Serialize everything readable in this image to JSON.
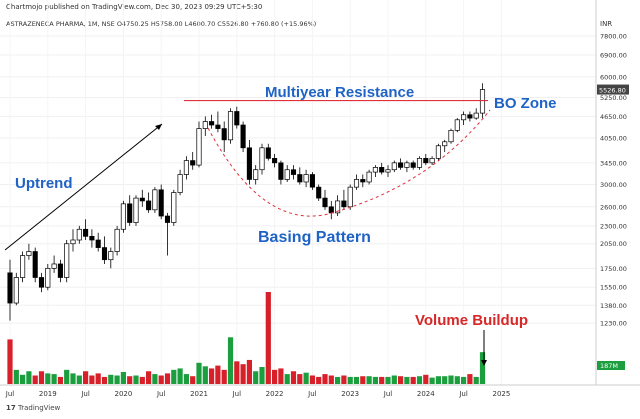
{
  "header": {
    "published_line": "Chartmojo published on TradingView.com, Dec 30, 2023 09:29 UTC+5:30",
    "symbol_line": "ASTRAZENECA PHARMA, 1M, NSE  O4750.25  H5758.00  L4600.70  C5526.80  +760.80 (+15.96%)",
    "currency": "INR"
  },
  "footer": {
    "brand": "TradingView"
  },
  "colors": {
    "up": "#1b9e3e",
    "down": "#d7202a",
    "resistance": "#e0303c",
    "annotation": "#1f63c6",
    "volume_label": "#d62828",
    "price_tag": "#444444"
  },
  "chart_data": {
    "type": "candlestick",
    "title": "ASTRAZENECA PHARMA, 1M, NSE",
    "timeframe": "1M",
    "scale": "log",
    "ylim": [
      1200,
      7800
    ],
    "x_ticks": [
      {
        "label": "Jul",
        "x": 2018.5
      },
      {
        "label": "2019",
        "x": 2019.0
      },
      {
        "label": "Jul",
        "x": 2019.5
      },
      {
        "label": "2020",
        "x": 2020.0
      },
      {
        "label": "Jul",
        "x": 2020.5
      },
      {
        "label": "2021",
        "x": 2021.0
      },
      {
        "label": "Jul",
        "x": 2021.5
      },
      {
        "label": "2022",
        "x": 2022.0
      },
      {
        "label": "Jul",
        "x": 2022.5
      },
      {
        "label": "2023",
        "x": 2023.0
      },
      {
        "label": "Jul",
        "x": 2023.5
      },
      {
        "label": "2024",
        "x": 2024.0
      },
      {
        "label": "Jul",
        "x": 2024.5
      },
      {
        "label": "2025",
        "x": 2025.0
      }
    ],
    "y_ticks": [
      "7800.00",
      "6900.00",
      "6000.00",
      "5250.00",
      "4650.00",
      "4050.00",
      "3450.00",
      "3000.00",
      "2600.00",
      "2300.00",
      "2050.00",
      "1750.00",
      "1550.00",
      "1380.00",
      "1230.00"
    ],
    "last_price_label": "5526.80",
    "volume_last_label": "187M",
    "candles": [
      [
        1700,
        1850,
        1250,
        1400
      ],
      [
        1400,
        1700,
        1380,
        1650
      ],
      [
        1650,
        1950,
        1600,
        1900
      ],
      [
        1900,
        2050,
        1850,
        1950
      ],
      [
        1950,
        2000,
        1600,
        1650
      ],
      [
        1650,
        1700,
        1500,
        1550
      ],
      [
        1550,
        1800,
        1520,
        1750
      ],
      [
        1750,
        1900,
        1700,
        1800
      ],
      [
        1800,
        1850,
        1600,
        1650
      ],
      [
        1650,
        2100,
        1600,
        2050
      ],
      [
        2050,
        2250,
        1950,
        2100
      ],
      [
        2100,
        2300,
        2050,
        2250
      ],
      [
        2250,
        2400,
        2100,
        2150
      ],
      [
        2150,
        2250,
        2000,
        2100
      ],
      [
        2100,
        2200,
        1950,
        2000
      ],
      [
        2000,
        2150,
        1800,
        1850
      ],
      [
        1850,
        2000,
        1750,
        1950
      ],
      [
        1950,
        2300,
        1900,
        2250
      ],
      [
        2250,
        2700,
        2200,
        2650
      ],
      [
        2650,
        2800,
        2300,
        2350
      ],
      [
        2350,
        2800,
        2300,
        2750
      ],
      [
        2750,
        2900,
        2600,
        2700
      ],
      [
        2700,
        2850,
        2500,
        2550
      ],
      [
        2550,
        2950,
        2500,
        2900
      ],
      [
        2900,
        3000,
        2400,
        2450
      ],
      [
        2450,
        2500,
        1900,
        2350
      ],
      [
        2350,
        2900,
        2300,
        2850
      ],
      [
        2850,
        3300,
        2800,
        3200
      ],
      [
        3200,
        3600,
        3100,
        3500
      ],
      [
        3500,
        3700,
        3300,
        3400
      ],
      [
        3400,
        4500,
        3350,
        4300
      ],
      [
        4300,
        4650,
        4100,
        4500
      ],
      [
        4500,
        4700,
        4300,
        4400
      ],
      [
        4400,
        4800,
        4200,
        4300
      ],
      [
        4300,
        4500,
        3700,
        4000
      ],
      [
        4000,
        4900,
        3900,
        4800
      ],
      [
        4800,
        4950,
        4300,
        4400
      ],
      [
        4400,
        4500,
        3700,
        3800
      ],
      [
        3800,
        4000,
        3000,
        3100
      ],
      [
        3100,
        3400,
        3000,
        3300
      ],
      [
        3300,
        3900,
        3200,
        3800
      ],
      [
        3800,
        3900,
        3500,
        3550
      ],
      [
        3550,
        3650,
        3350,
        3450
      ],
      [
        3450,
        3500,
        3000,
        3100
      ],
      [
        3100,
        3400,
        3050,
        3300
      ],
      [
        3300,
        3400,
        3100,
        3200
      ],
      [
        3200,
        3350,
        3000,
        3050
      ],
      [
        3050,
        3300,
        2950,
        3200
      ],
      [
        3200,
        3250,
        2900,
        2950
      ],
      [
        2950,
        3000,
        2700,
        2750
      ],
      [
        2750,
        2900,
        2550,
        2600
      ],
      [
        2600,
        2700,
        2400,
        2500
      ],
      [
        2500,
        2800,
        2450,
        2700
      ],
      [
        2700,
        2900,
        2550,
        2600
      ],
      [
        2600,
        3000,
        2550,
        2950
      ],
      [
        2950,
        3200,
        2900,
        3100
      ],
      [
        3100,
        3200,
        2950,
        3050
      ],
      [
        3050,
        3300,
        3000,
        3250
      ],
      [
        3250,
        3400,
        3150,
        3350
      ],
      [
        3350,
        3450,
        3200,
        3250
      ],
      [
        3250,
        3400,
        3150,
        3300
      ],
      [
        3300,
        3500,
        3250,
        3450
      ],
      [
        3450,
        3550,
        3300,
        3350
      ],
      [
        3350,
        3500,
        3250,
        3450
      ],
      [
        3450,
        3500,
        3300,
        3350
      ],
      [
        3350,
        3600,
        3300,
        3550
      ],
      [
        3550,
        3650,
        3400,
        3450
      ],
      [
        3450,
        3600,
        3400,
        3550
      ],
      [
        3550,
        3900,
        3500,
        3850
      ],
      [
        3850,
        4000,
        3700,
        3950
      ],
      [
        3950,
        4300,
        3900,
        4250
      ],
      [
        4250,
        4600,
        4200,
        4550
      ],
      [
        4550,
        4800,
        4400,
        4700
      ],
      [
        4700,
        4800,
        4500,
        4600
      ],
      [
        4600,
        4900,
        4550,
        4750
      ],
      [
        4750,
        5758,
        4600,
        5527
      ]
    ],
    "volume": [
      63,
      20,
      13,
      18,
      12,
      18,
      15,
      14,
      10,
      20,
      15,
      12,
      18,
      12,
      15,
      10,
      13,
      12,
      17,
      11,
      12,
      10,
      18,
      14,
      12,
      15,
      20,
      22,
      14,
      11,
      30,
      25,
      22,
      26,
      20,
      66,
      32,
      28,
      34,
      18,
      24,
      130,
      20,
      22,
      14,
      18,
      14,
      16,
      12,
      10,
      14,
      12,
      10,
      12,
      10,
      10,
      11,
      11,
      10,
      10,
      10,
      12,
      11,
      10,
      10,
      11,
      13,
      9,
      11,
      11,
      12,
      11,
      10,
      14,
      10,
      45
    ],
    "annotations": {
      "resistance_label": "Multiyear Resistance",
      "resistance_level": 5150,
      "bo_zone_label": "BO Zone",
      "uptrend_label": "Uptrend",
      "basing_label": "Basing Pattern",
      "volume_label": "Volume Buildup"
    }
  }
}
